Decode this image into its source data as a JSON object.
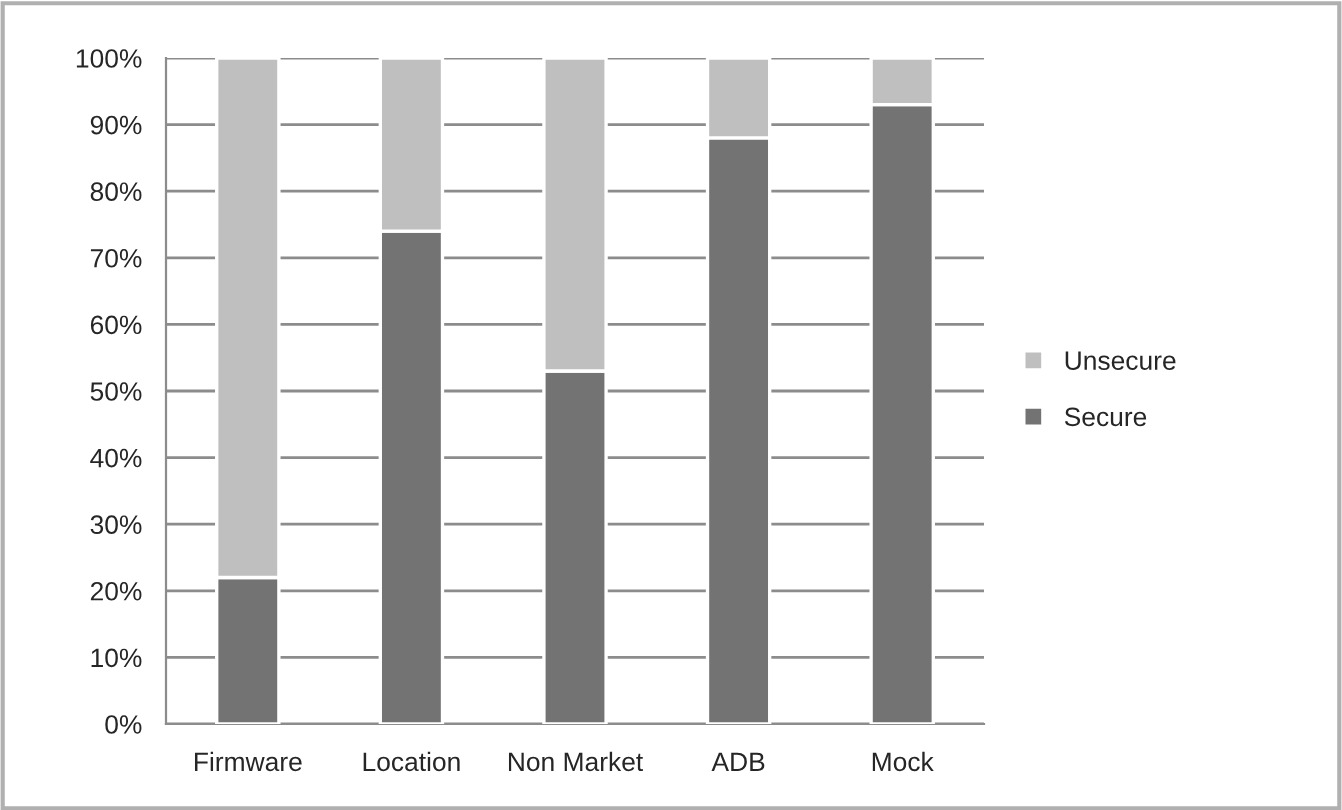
{
  "chart_data": {
    "type": "bar",
    "stacked": true,
    "categories": [
      "Firmware",
      "Location",
      "Non Market",
      "ADB",
      "Mock"
    ],
    "series": [
      {
        "name": "Secure",
        "color": "#737373",
        "values": [
          22,
          74,
          53,
          88,
          93
        ]
      },
      {
        "name": "Unsecure",
        "color": "#bfbfbf",
        "values": [
          78,
          26,
          47,
          12,
          7
        ]
      }
    ],
    "ylim": [
      0,
      100
    ],
    "yticks": [
      {
        "value": 0,
        "label": "0%"
      },
      {
        "value": 10,
        "label": "10%"
      },
      {
        "value": 20,
        "label": "20%"
      },
      {
        "value": 30,
        "label": "30%"
      },
      {
        "value": 40,
        "label": "40%"
      },
      {
        "value": 50,
        "label": "50%"
      },
      {
        "value": 60,
        "label": "60%"
      },
      {
        "value": 70,
        "label": "70%"
      },
      {
        "value": 80,
        "label": "80%"
      },
      {
        "value": 90,
        "label": "90%"
      },
      {
        "value": 100,
        "label": "100%"
      }
    ],
    "grid": "y",
    "legend": "right"
  }
}
